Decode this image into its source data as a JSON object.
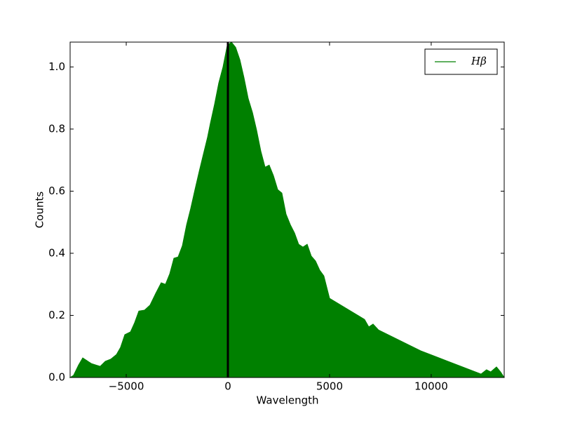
{
  "chart_data": {
    "type": "area",
    "xlabel": "Wavelength",
    "ylabel": "Counts",
    "series": [
      {
        "name": "Hβ",
        "color": "#008000",
        "x": [
          -7760,
          -7590,
          -7345,
          -7140,
          -6930,
          -6720,
          -6480,
          -6280,
          -6030,
          -5760,
          -5480,
          -5280,
          -5070,
          -4790,
          -4590,
          -4380,
          -4100,
          -3830,
          -3550,
          -3280,
          -3070,
          -2860,
          -2655,
          -2450,
          -2240,
          -2030,
          -1830,
          -1620,
          -1410,
          -1210,
          -1000,
          -860,
          -655,
          -450,
          -240,
          -35,
          170,
          380,
          590,
          790,
          1000,
          1210,
          1410,
          1620,
          1830,
          2030,
          2240,
          2450,
          2655,
          2860,
          3070,
          3280,
          3480,
          3690,
          3900,
          4100,
          4310,
          4520,
          4720,
          5000,
          6720,
          6930,
          7140,
          7410,
          9480,
          12450,
          12720,
          12930,
          13210,
          13410,
          13590
        ],
        "values": [
          0,
          0.007,
          0.04,
          0.063,
          0.054,
          0.045,
          0.04,
          0.036,
          0.052,
          0.059,
          0.074,
          0.097,
          0.138,
          0.147,
          0.176,
          0.214,
          0.217,
          0.233,
          0.271,
          0.305,
          0.3,
          0.334,
          0.384,
          0.388,
          0.424,
          0.492,
          0.544,
          0.605,
          0.664,
          0.718,
          0.774,
          0.819,
          0.88,
          0.948,
          1.0,
          1.068,
          1.08,
          1.063,
          1.023,
          0.966,
          0.898,
          0.853,
          0.797,
          0.729,
          0.677,
          0.684,
          0.65,
          0.605,
          0.594,
          0.526,
          0.492,
          0.465,
          0.429,
          0.42,
          0.429,
          0.391,
          0.375,
          0.345,
          0.327,
          0.255,
          0.187,
          0.163,
          0.172,
          0.153,
          0.086,
          0.011,
          0.025,
          0.018,
          0.034,
          0.018,
          0
        ]
      }
    ],
    "xlim": [
      -7760,
      13590
    ],
    "ylim": [
      0,
      1.08
    ],
    "xticks": [
      {
        "value": -5000,
        "label": "−5000"
      },
      0,
      5000,
      10000
    ],
    "yticks": [
      {
        "value": 0,
        "label": "0.0"
      },
      0.2,
      0.4,
      0.6,
      0.8,
      {
        "value": 1,
        "label": "1.0"
      }
    ],
    "vline": 0,
    "vline_color": "#000000",
    "legend": "upper right"
  }
}
